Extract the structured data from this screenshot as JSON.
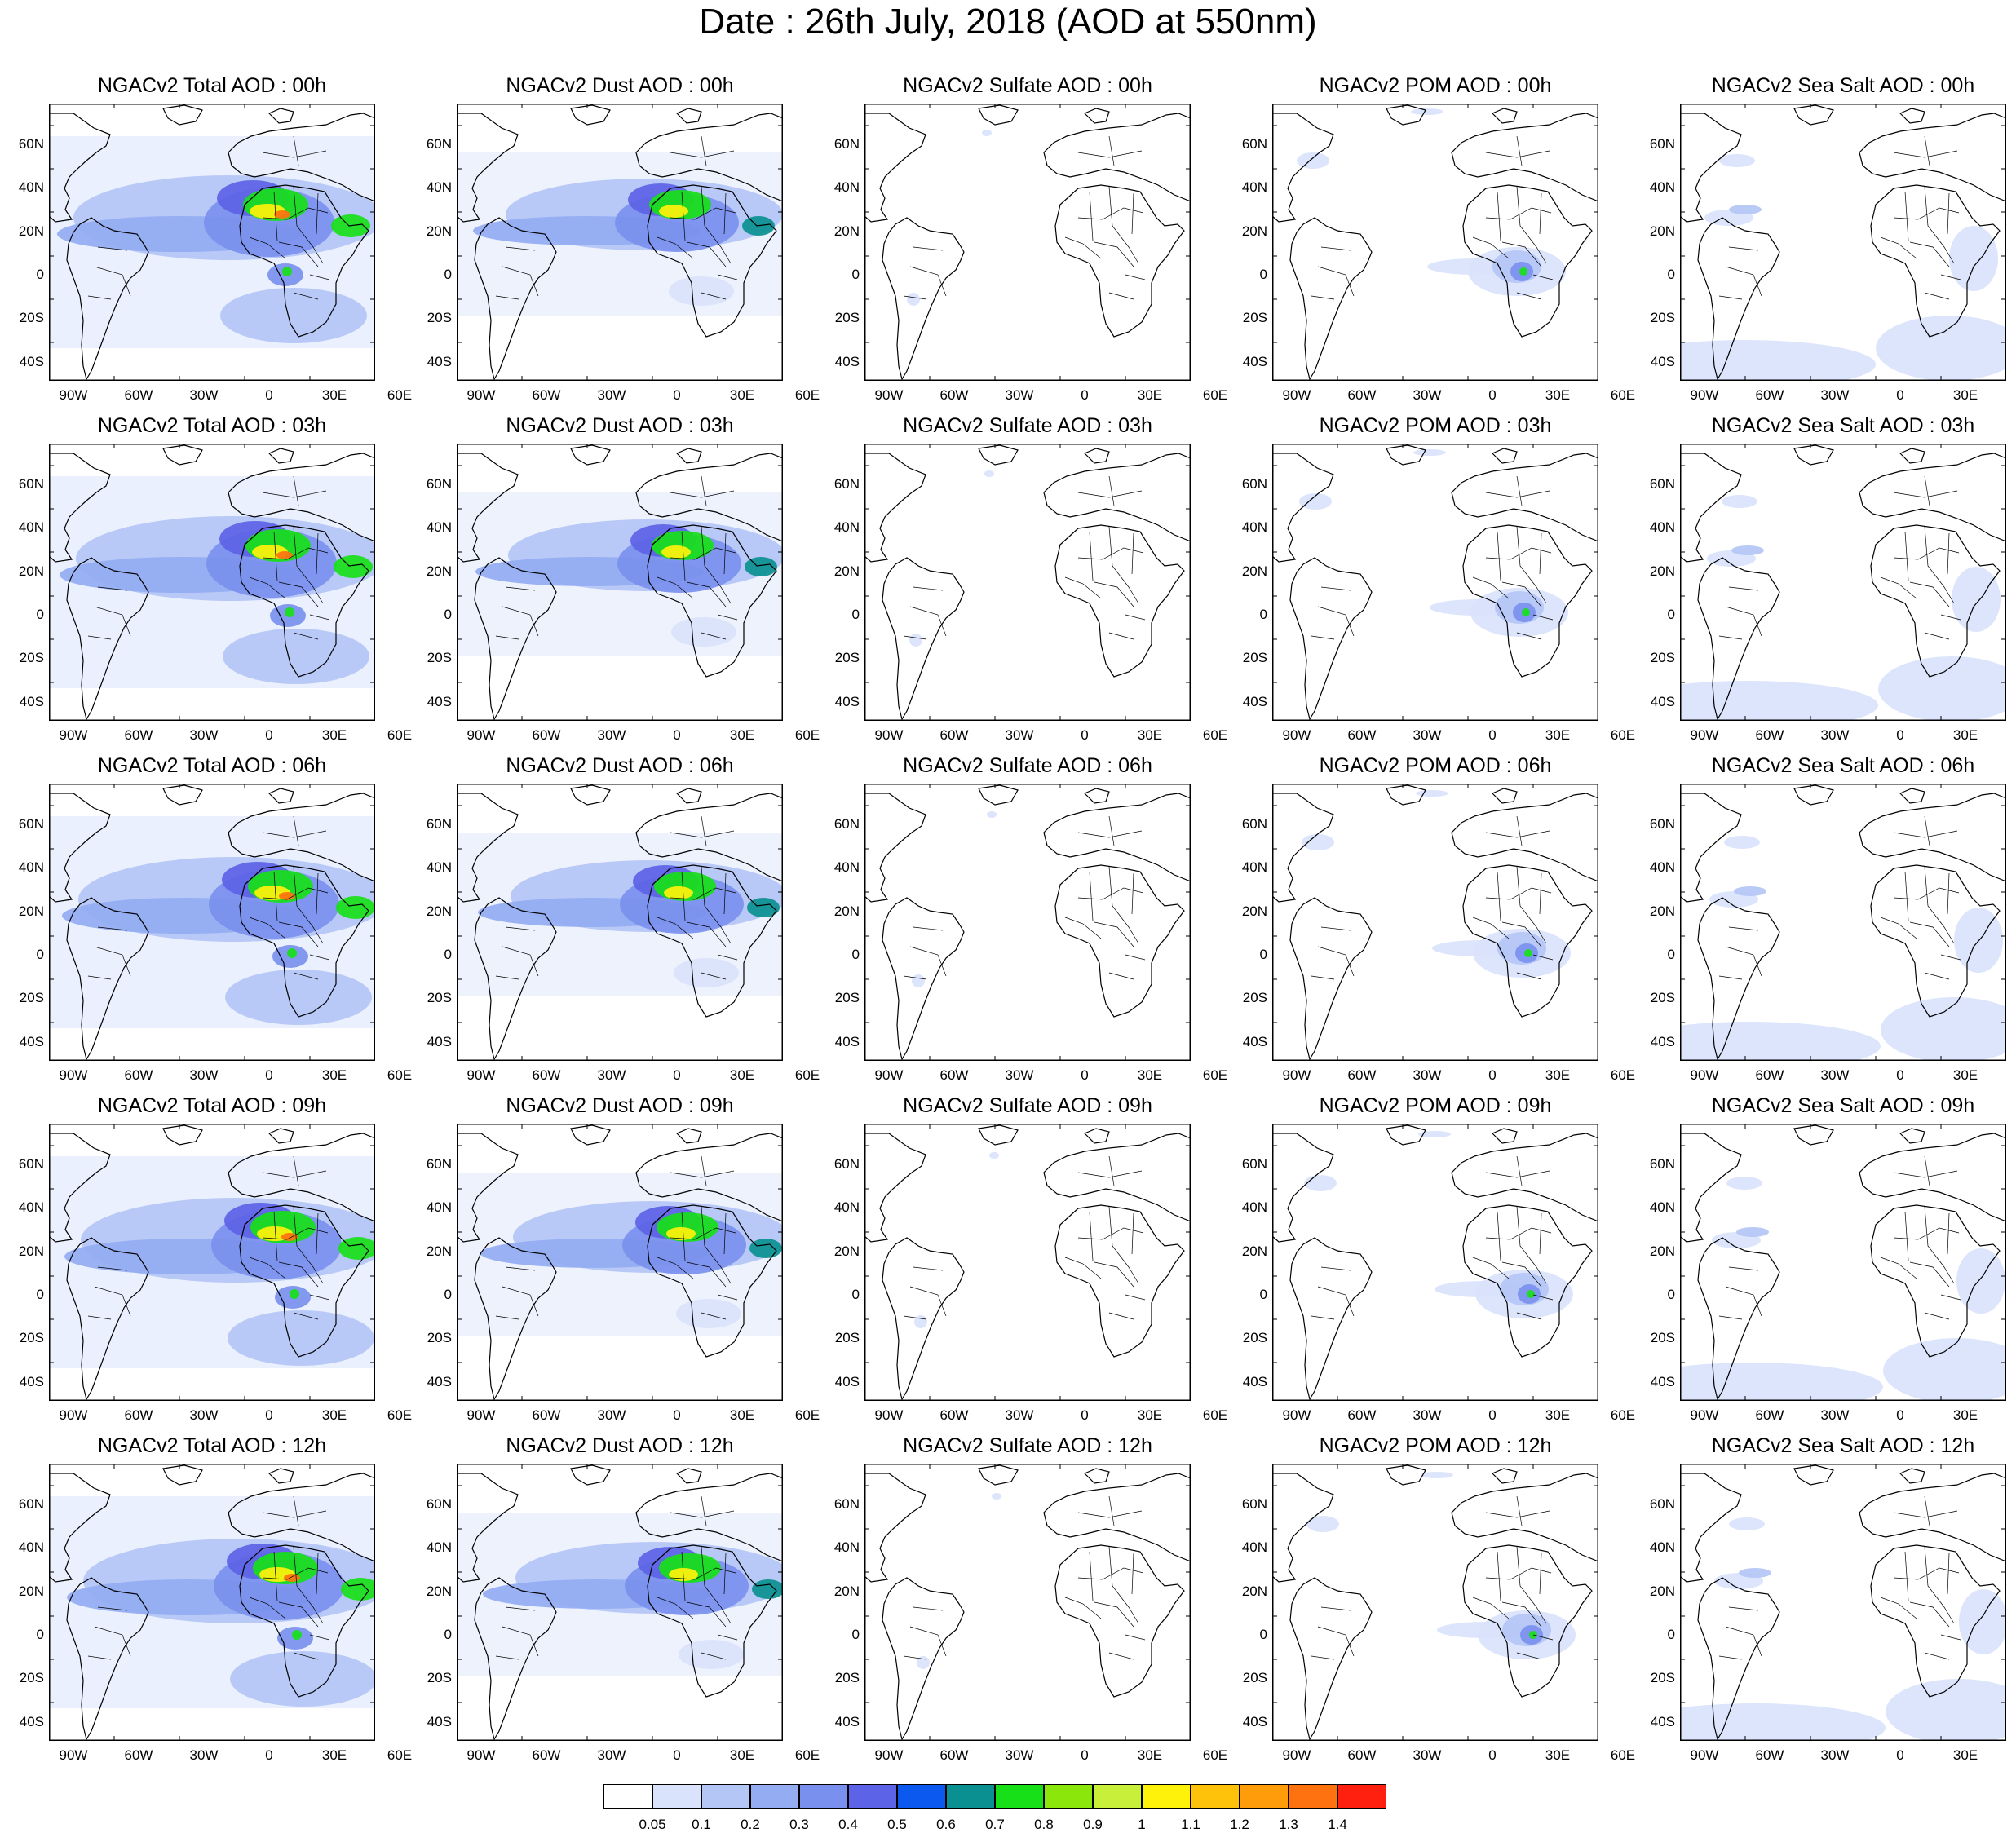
{
  "title": "Date : 26th July, 2018 (AOD at 550nm)",
  "panels": [
    [
      "NGACv2 Total AOD : 00h",
      "NGACv2 Dust AOD : 00h",
      "NGACv2 Sulfate AOD : 00h",
      "NGACv2 POM AOD : 00h",
      "NGACv2 Sea Salt AOD : 00h"
    ],
    [
      "NGACv2 Total AOD : 03h",
      "NGACv2 Dust AOD : 03h",
      "NGACv2 Sulfate AOD : 03h",
      "NGACv2 POM AOD : 03h",
      "NGACv2 Sea Salt AOD : 03h"
    ],
    [
      "NGACv2 Total AOD : 06h",
      "NGACv2 Dust AOD : 06h",
      "NGACv2 Sulfate AOD : 06h",
      "NGACv2 POM AOD : 06h",
      "NGACv2 Sea Salt AOD : 06h"
    ],
    [
      "NGACv2 Total AOD : 09h",
      "NGACv2 Dust AOD : 09h",
      "NGACv2 Sulfate AOD : 09h",
      "NGACv2 POM AOD : 09h",
      "NGACv2 Sea Salt  AOD : 09h"
    ],
    [
      "NGACv2 Total AOD  : 12h",
      "NGACv2 Dust AOD : 12h",
      "NGACv2 Sulfate AOD : 12h",
      "NGACv2 POM  AOD : 12h",
      "NGACv2 Sea Salt  AOD : 12h"
    ]
  ],
  "lat_labels": [
    "60N",
    "40N",
    "20N",
    "0",
    "20S",
    "40S"
  ],
  "lon_labels": [
    "90W",
    "60W",
    "30W",
    "0",
    "30E",
    "60E"
  ],
  "legend": {
    "labels": [
      "0.05",
      "0.1",
      "0.2",
      "0.3",
      "0.4",
      "0.5",
      "0.6",
      "0.7",
      "0.8",
      "0.9",
      "1",
      "1.1",
      "1.2",
      "1.3",
      "1.4"
    ],
    "colors": [
      "#ffffff",
      "#d9e3fb",
      "#b4c6f6",
      "#93acf2",
      "#7990ee",
      "#5d63e6",
      "#0c59f0",
      "#0a9090",
      "#17e018",
      "#8be60c",
      "#c8f03a",
      "#fff20a",
      "#ffc20a",
      "#ff9c0a",
      "#ff7210",
      "#ff2010"
    ]
  }
}
